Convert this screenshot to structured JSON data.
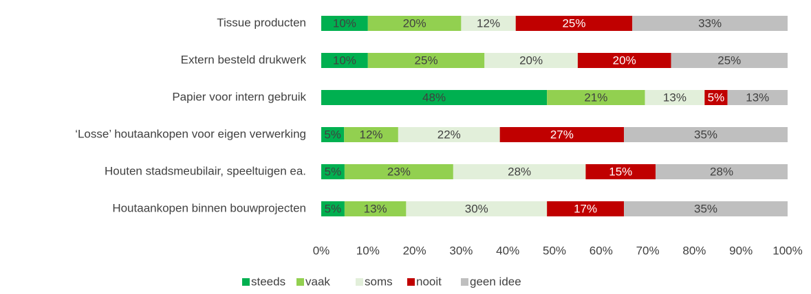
{
  "chart_data": {
    "type": "stacked_bar_horizontal",
    "categories": [
      "Tissue producten",
      "Extern besteld drukwerk",
      "Papier voor intern gebruik",
      "‘Losse’ houtaankopen voor eigen verwerking",
      "Houten stadsmeubilair, speeltuigen ea.",
      "Houtaankopen binnen bouwprojecten"
    ],
    "series": [
      {
        "name": "steeds",
        "color": "#00b050",
        "values": [
          10,
          10,
          48.4,
          4.9,
          5,
          5
        ],
        "value_labels": [
          "10%",
          "10%",
          "48%",
          "5%",
          "5%",
          "5%"
        ]
      },
      {
        "name": "vaak",
        "color": "#92d050",
        "values": [
          20,
          25,
          21,
          11.6,
          23.3,
          13.2
        ],
        "value_labels": [
          "20%",
          "25%",
          "21%",
          "12%",
          "23%",
          "13%"
        ]
      },
      {
        "name": "soms",
        "color": "#e2efda",
        "values": [
          11.7,
          20,
          12.8,
          21.8,
          28.4,
          30.2
        ],
        "value_labels": [
          "12%",
          "20%",
          "13%",
          "22%",
          "28%",
          "30%"
        ]
      },
      {
        "name": "nooit",
        "color": "#c00000",
        "values": [
          25,
          20,
          4.9,
          26.6,
          15,
          16.5
        ],
        "value_labels": [
          "25%",
          "20%",
          "5%",
          "27%",
          "15%",
          "17%"
        ]
      },
      {
        "name": "geen idee",
        "color": "#bfbfbf",
        "values": [
          33.3,
          25,
          12.9,
          35.1,
          28.3,
          35.1
        ],
        "value_labels": [
          "33%",
          "25%",
          "13%",
          "35%",
          "28%",
          "35%"
        ]
      }
    ],
    "xlim": [
      0,
      100
    ],
    "xticks": [
      {
        "value": 0,
        "label": "0%"
      },
      {
        "value": 10,
        "label": "10%"
      },
      {
        "value": 20,
        "label": "20%"
      },
      {
        "value": 30,
        "label": "30%"
      },
      {
        "value": 40,
        "label": "40%"
      },
      {
        "value": 50,
        "label": "50%"
      },
      {
        "value": 60,
        "label": "60%"
      },
      {
        "value": 70,
        "label": "70%"
      },
      {
        "value": 80,
        "label": "80%"
      },
      {
        "value": 90,
        "label": "90%"
      },
      {
        "value": 100,
        "label": "100%"
      }
    ],
    "legend": "bottom"
  }
}
